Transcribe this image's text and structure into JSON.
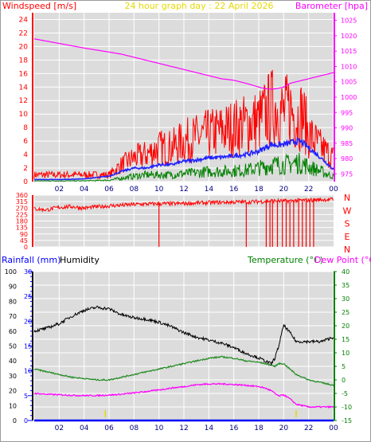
{
  "header": {
    "wind_label": "Windspeed [m/s]",
    "title": "24 hour graph day : 22 April 2026",
    "baro_label": "Barometer [hpa]"
  },
  "colors": {
    "gust": "#ff0000",
    "avg_wind": "#2020ff",
    "low_wind": "#008000",
    "barometer": "#ff00ff",
    "direction": "#ff0000",
    "humidity": "#000000",
    "temperature": "#228b22",
    "dewpoint": "#ff00ff",
    "rainfall": "#0000ff",
    "plot_bg": "#dcdcdc"
  },
  "chart_data": [
    {
      "type": "line",
      "name": "wind-barometer",
      "x_ticks": [
        "02",
        "04",
        "06",
        "08",
        "10",
        "12",
        "14",
        "16",
        "18",
        "20",
        "22",
        "00"
      ],
      "ylabel": "Windspeed [m/s]",
      "ylim": [
        0,
        25
      ],
      "y_ticks": [
        0,
        2,
        4,
        6,
        8,
        10,
        12,
        14,
        16,
        18,
        20,
        22,
        24
      ],
      "y2label": "Barometer [hpa]",
      "y2lim": [
        972.5,
        1027.5
      ],
      "y2_ticks": [
        975,
        980,
        985,
        990,
        995,
        1000,
        1005,
        1010,
        1015,
        1020,
        1025
      ],
      "x_hours": [
        0,
        2,
        4,
        6,
        7,
        8,
        9,
        10,
        11,
        12,
        13,
        14,
        15,
        16,
        17,
        18,
        18.5,
        19,
        19.5,
        20,
        20.5,
        21,
        21.5,
        22,
        23,
        24
      ],
      "series": [
        {
          "key": "gust",
          "values": [
            1,
            1,
            1,
            1,
            2.5,
            3.5,
            4,
            5,
            5,
            6,
            6.5,
            7,
            7.5,
            8,
            8.5,
            9,
            10,
            11,
            11,
            10,
            11,
            9.5,
            10,
            7,
            5,
            3.5
          ]
        },
        {
          "key": "avg_wind",
          "values": [
            0.3,
            0.3,
            0.4,
            0.8,
            1.5,
            2,
            2,
            2.5,
            2.5,
            3,
            3.2,
            3.5,
            3.6,
            3.8,
            4,
            4.5,
            5,
            5.5,
            5.4,
            5.5,
            5.7,
            6,
            5.8,
            5,
            3.5,
            1.8
          ]
        },
        {
          "key": "low_wind",
          "values": [
            0.1,
            0.1,
            0.1,
            0.2,
            0.5,
            0.8,
            1,
            1,
            1,
            1.2,
            1.3,
            1.5,
            1.5,
            1.6,
            1.7,
            2,
            2.2,
            2.5,
            2.5,
            2.5,
            2.6,
            2.8,
            2.6,
            2.2,
            1.5,
            0.7
          ]
        },
        {
          "key": "barometer",
          "values": [
            1019,
            1017.5,
            1016,
            1014.7,
            1014,
            1013,
            1012,
            1011,
            1010,
            1009,
            1008,
            1007,
            1006,
            1005.5,
            1004.5,
            1003.3,
            1002.8,
            1002.6,
            1002.8,
            1003.3,
            1004.5,
            1005,
            1005.5,
            1006,
            1007,
            1008
          ]
        }
      ]
    },
    {
      "type": "scatter",
      "name": "wind-direction",
      "ylim": [
        0,
        360
      ],
      "y_ticks": [
        0,
        45,
        90,
        135,
        180,
        225,
        270,
        315,
        360
      ],
      "compass_labels": [
        "N",
        "W",
        "S",
        "E",
        "N"
      ],
      "x_hours": [
        0,
        1,
        2,
        3,
        4,
        5,
        6,
        7,
        8,
        9,
        10,
        11,
        12,
        13,
        14,
        15,
        16,
        17,
        18,
        19,
        20,
        21,
        22,
        23,
        24
      ],
      "values": [
        265,
        258,
        275,
        280,
        270,
        278,
        285,
        290,
        295,
        298,
        300,
        300,
        302,
        305,
        308,
        310,
        312,
        312,
        315,
        320,
        318,
        322,
        325,
        328,
        330
      ],
      "drops_to_zero_at_hours": [
        10,
        17,
        18.6,
        18.9,
        19.1,
        19.5,
        19.9,
        20.2,
        20.5,
        20.8,
        21.2,
        21.5,
        21.8,
        22.1,
        22.4
      ]
    },
    {
      "type": "line",
      "name": "rain-humidity-temperature",
      "x_ticks": [
        "02",
        "04",
        "06",
        "08",
        "10",
        "12",
        "14",
        "16",
        "18",
        "20",
        "22",
        "00"
      ],
      "ylabel_left": "Rainfall (mm)",
      "humidity_label": "Humidity",
      "y_humidity_lim": [
        0,
        100
      ],
      "y_humidity_ticks": [
        0,
        10,
        20,
        30,
        40,
        50,
        60,
        70,
        80,
        90,
        100
      ],
      "y_rain_lim": [
        0,
        30
      ],
      "y_rain_ticks": [
        0,
        5,
        10,
        15,
        20,
        25,
        30
      ],
      "temperature_label": "Temperature (°C)",
      "dewpoint_label": "Dew Point (°C)",
      "y_temp_lim": [
        -15,
        40
      ],
      "y_temp_ticks": [
        -15,
        -10,
        -5,
        0,
        5,
        10,
        15,
        20,
        25,
        30,
        35,
        40
      ],
      "x_hours": [
        0,
        1,
        2,
        3,
        4,
        5,
        6,
        7,
        8,
        9,
        10,
        11,
        12,
        13,
        14,
        15,
        16,
        17,
        18,
        18.5,
        19,
        19.3,
        19.6,
        20,
        20.5,
        21,
        22,
        23,
        24
      ],
      "series": [
        {
          "key": "humidity",
          "values": [
            60,
            62,
            65,
            70,
            74,
            76,
            75,
            71,
            69,
            68,
            66,
            63,
            59,
            56,
            54,
            52,
            49,
            45,
            42,
            40,
            38,
            42,
            50,
            64,
            59,
            53,
            53,
            53,
            56
          ]
        },
        {
          "key": "temperature",
          "values": [
            4,
            3,
            2,
            1,
            0.5,
            0,
            0,
            1,
            2,
            3,
            4,
            5,
            6,
            7,
            8,
            8.5,
            8,
            7,
            6.5,
            6,
            5.5,
            5,
            6,
            6,
            4,
            2,
            0,
            -1,
            -2
          ]
        },
        {
          "key": "dewpoint",
          "values": [
            -5,
            -5.3,
            -5.5,
            -5.7,
            -5.8,
            -5.8,
            -5.6,
            -5.3,
            -4.8,
            -4.3,
            -3.7,
            -3,
            -2.5,
            -1.8,
            -1.5,
            -1.5,
            -1.7,
            -2,
            -2.5,
            -3,
            -4,
            -5,
            -6,
            -5.5,
            -7,
            -9,
            -10,
            -10,
            -10
          ]
        },
        {
          "key": "rainfall",
          "values": [
            0,
            0,
            0,
            0,
            0,
            0,
            0,
            0,
            0,
            0,
            0,
            0,
            0,
            0,
            0,
            0,
            0,
            0,
            0,
            0,
            0,
            0,
            0,
            0,
            0,
            0,
            0,
            0,
            0
          ]
        }
      ],
      "marker_hours": [
        5.7,
        21
      ]
    }
  ]
}
